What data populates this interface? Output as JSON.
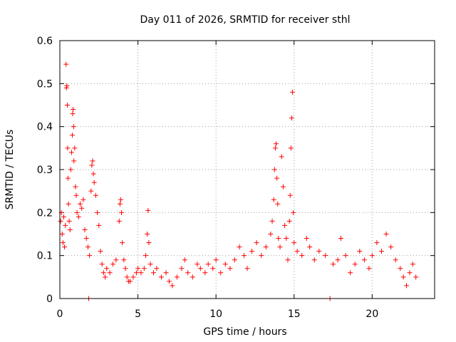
{
  "chart_data": {
    "type": "scatter",
    "title": "Day 011 of 2026, SRMTID for receiver sthl",
    "xlabel": "GPS time / hours",
    "ylabel": "SRMTID / TECUs",
    "xlim": [
      0,
      24
    ],
    "ylim": [
      0,
      0.6
    ],
    "xticks": [
      0,
      5,
      10,
      15,
      20
    ],
    "xtick_labels": [
      "0",
      "5",
      "10",
      "15",
      "20"
    ],
    "yticks": [
      0,
      0.1,
      0.2,
      0.3,
      0.4,
      0.5,
      0.6
    ],
    "ytick_labels": [
      "0",
      "0.1",
      "0.2",
      "0.3",
      "0.4",
      "0.5",
      "0.6"
    ],
    "grid": true,
    "marker": "+",
    "color": "#ff0000",
    "series": [
      {
        "name": "SRMTID",
        "points": [
          [
            0.05,
            0.18
          ],
          [
            0.1,
            0.2
          ],
          [
            0.15,
            0.15
          ],
          [
            0.2,
            0.13
          ],
          [
            0.25,
            0.19
          ],
          [
            0.3,
            0.12
          ],
          [
            0.35,
            0.17
          ],
          [
            0.4,
            0.545
          ],
          [
            0.42,
            0.49
          ],
          [
            0.45,
            0.495
          ],
          [
            0.48,
            0.45
          ],
          [
            0.5,
            0.35
          ],
          [
            0.52,
            0.28
          ],
          [
            0.55,
            0.22
          ],
          [
            0.6,
            0.18
          ],
          [
            0.65,
            0.16
          ],
          [
            0.7,
            0.3
          ],
          [
            0.75,
            0.34
          ],
          [
            0.8,
            0.38
          ],
          [
            0.82,
            0.43
          ],
          [
            0.85,
            0.44
          ],
          [
            0.88,
            0.4
          ],
          [
            0.9,
            0.32
          ],
          [
            0.95,
            0.35
          ],
          [
            1.0,
            0.26
          ],
          [
            1.05,
            0.24
          ],
          [
            1.1,
            0.2
          ],
          [
            1.2,
            0.19
          ],
          [
            1.3,
            0.22
          ],
          [
            1.4,
            0.21
          ],
          [
            1.5,
            0.23
          ],
          [
            1.6,
            0.16
          ],
          [
            1.7,
            0.14
          ],
          [
            1.8,
            0.12
          ],
          [
            1.9,
            0.1
          ],
          [
            1.85,
            0.0
          ],
          [
            2.0,
            0.25
          ],
          [
            2.05,
            0.31
          ],
          [
            2.1,
            0.32
          ],
          [
            2.15,
            0.29
          ],
          [
            2.2,
            0.27
          ],
          [
            2.3,
            0.24
          ],
          [
            2.4,
            0.2
          ],
          [
            2.5,
            0.17
          ],
          [
            2.6,
            0.11
          ],
          [
            2.7,
            0.08
          ],
          [
            2.8,
            0.06
          ],
          [
            2.9,
            0.05
          ],
          [
            3.0,
            0.07
          ],
          [
            3.2,
            0.06
          ],
          [
            3.4,
            0.08
          ],
          [
            3.6,
            0.09
          ],
          [
            3.8,
            0.18
          ],
          [
            3.85,
            0.22
          ],
          [
            3.9,
            0.23
          ],
          [
            3.95,
            0.2
          ],
          [
            4.0,
            0.13
          ],
          [
            4.1,
            0.09
          ],
          [
            4.2,
            0.07
          ],
          [
            4.3,
            0.05
          ],
          [
            4.4,
            0.04
          ],
          [
            4.5,
            0.04
          ],
          [
            4.7,
            0.05
          ],
          [
            4.9,
            0.06
          ],
          [
            5.0,
            0.07
          ],
          [
            5.2,
            0.06
          ],
          [
            5.4,
            0.07
          ],
          [
            5.5,
            0.1
          ],
          [
            5.6,
            0.15
          ],
          [
            5.65,
            0.205
          ],
          [
            5.7,
            0.13
          ],
          [
            5.8,
            0.08
          ],
          [
            6.0,
            0.06
          ],
          [
            6.2,
            0.07
          ],
          [
            6.5,
            0.05
          ],
          [
            6.8,
            0.06
          ],
          [
            7.0,
            0.04
          ],
          [
            7.2,
            0.03
          ],
          [
            7.5,
            0.05
          ],
          [
            7.8,
            0.07
          ],
          [
            8.0,
            0.09
          ],
          [
            8.2,
            0.06
          ],
          [
            8.5,
            0.05
          ],
          [
            8.8,
            0.08
          ],
          [
            9.0,
            0.07
          ],
          [
            9.3,
            0.06
          ],
          [
            9.5,
            0.08
          ],
          [
            9.8,
            0.07
          ],
          [
            10.0,
            0.09
          ],
          [
            10.3,
            0.06
          ],
          [
            10.6,
            0.08
          ],
          [
            10.9,
            0.07
          ],
          [
            11.2,
            0.09
          ],
          [
            11.5,
            0.12
          ],
          [
            11.8,
            0.1
          ],
          [
            12.0,
            0.07
          ],
          [
            12.3,
            0.11
          ],
          [
            12.6,
            0.13
          ],
          [
            12.9,
            0.1
          ],
          [
            13.2,
            0.12
          ],
          [
            13.5,
            0.15
          ],
          [
            13.6,
            0.18
          ],
          [
            13.7,
            0.23
          ],
          [
            13.75,
            0.3
          ],
          [
            13.8,
            0.35
          ],
          [
            13.85,
            0.36
          ],
          [
            13.9,
            0.28
          ],
          [
            13.95,
            0.22
          ],
          [
            14.0,
            0.14
          ],
          [
            14.1,
            0.12
          ],
          [
            14.2,
            0.33
          ],
          [
            14.3,
            0.26
          ],
          [
            14.4,
            0.17
          ],
          [
            14.5,
            0.14
          ],
          [
            14.6,
            0.09
          ],
          [
            14.7,
            0.18
          ],
          [
            14.75,
            0.24
          ],
          [
            14.8,
            0.35
          ],
          [
            14.85,
            0.42
          ],
          [
            14.9,
            0.48
          ],
          [
            14.95,
            0.2
          ],
          [
            15.0,
            0.13
          ],
          [
            15.2,
            0.11
          ],
          [
            15.5,
            0.1
          ],
          [
            15.8,
            0.14
          ],
          [
            16.0,
            0.12
          ],
          [
            16.3,
            0.09
          ],
          [
            16.6,
            0.11
          ],
          [
            17.0,
            0.1
          ],
          [
            17.3,
            0.0
          ],
          [
            17.5,
            0.08
          ],
          [
            17.8,
            0.09
          ],
          [
            18.0,
            0.14
          ],
          [
            18.3,
            0.1
          ],
          [
            18.6,
            0.06
          ],
          [
            18.9,
            0.08
          ],
          [
            19.2,
            0.11
          ],
          [
            19.5,
            0.09
          ],
          [
            19.8,
            0.07
          ],
          [
            20.0,
            0.1
          ],
          [
            20.3,
            0.13
          ],
          [
            20.6,
            0.11
          ],
          [
            20.9,
            0.15
          ],
          [
            21.2,
            0.12
          ],
          [
            21.5,
            0.09
          ],
          [
            21.8,
            0.07
          ],
          [
            22.0,
            0.05
          ],
          [
            22.2,
            0.03
          ],
          [
            22.4,
            0.06
          ],
          [
            22.6,
            0.08
          ],
          [
            22.8,
            0.05
          ]
        ]
      }
    ]
  }
}
